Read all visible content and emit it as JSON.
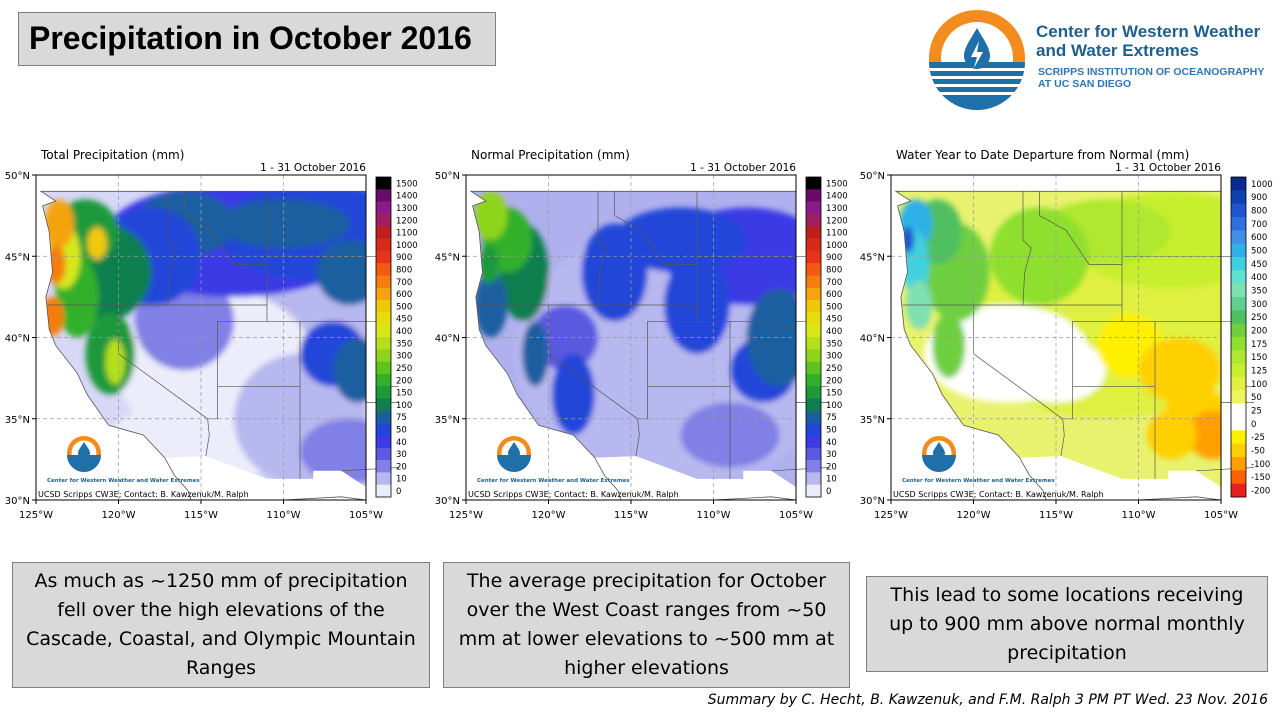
{
  "title": "Precipitation in October 2016",
  "logo": {
    "name": "Center for Western Weather and Water Extremes",
    "subtitle": "SCRIPPS INSTITUTION OF OCEANOGRAPHY AT UC SAN DIEGO",
    "colors": {
      "orange": "#f28c1f",
      "blue": "#1f6fa8",
      "dark_blue": "#1f5f8b"
    }
  },
  "map_common": {
    "date": "1 - 31 October 2016",
    "credit": "UCSD Scripps CW3E; Contact: B. Kawzenuk/M. Ralph",
    "mini_logo_text": "Center for Western Weather and Water Extremes",
    "lat_labels": [
      "50°N",
      "45°N",
      "40°N",
      "35°N",
      "30°N"
    ],
    "lon_labels": [
      "125°W",
      "120°W",
      "115°W",
      "110°W",
      "105°W"
    ]
  },
  "maps": [
    {
      "title": "Total Precipitation (mm)",
      "show_credit": true,
      "colorbar": {
        "labels": [
          "1500",
          "1400",
          "1300",
          "1200",
          "1100",
          "1000",
          "900",
          "800",
          "700",
          "600",
          "500",
          "450",
          "400",
          "350",
          "300",
          "250",
          "200",
          "150",
          "100",
          "75",
          "50",
          "40",
          "30",
          "20",
          "10",
          "0"
        ],
        "colors": [
          "#000000",
          "#6a0a6a",
          "#8b1a8b",
          "#a0205f",
          "#c01f1f",
          "#d62a1a",
          "#e8321a",
          "#f25a12",
          "#f57d0f",
          "#f5a30f",
          "#f0c80a",
          "#e8dc0a",
          "#d6e81a",
          "#b5df1a",
          "#8fd41a",
          "#5fc31f",
          "#33b02a",
          "#1f9a3a",
          "#0f7f4f",
          "#1a5fa0",
          "#2147d8",
          "#3a3ae6",
          "#5a5ae0",
          "#8080e6",
          "#b8b8f0",
          "#ececfa"
        ]
      }
    },
    {
      "title": "Normal Precipitation (mm)",
      "show_credit": true,
      "colorbar": {
        "labels": [
          "1500",
          "1400",
          "1300",
          "1200",
          "1100",
          "1000",
          "900",
          "800",
          "700",
          "600",
          "500",
          "450",
          "400",
          "350",
          "300",
          "250",
          "200",
          "150",
          "100",
          "75",
          "50",
          "40",
          "30",
          "20",
          "10",
          "0"
        ],
        "colors": [
          "#000000",
          "#6a0a6a",
          "#8b1a8b",
          "#a0205f",
          "#c01f1f",
          "#d62a1a",
          "#e8321a",
          "#f25a12",
          "#f57d0f",
          "#f5a30f",
          "#f0c80a",
          "#e8dc0a",
          "#d6e81a",
          "#b5df1a",
          "#8fd41a",
          "#5fc31f",
          "#33b02a",
          "#1f9a3a",
          "#0f7f4f",
          "#1a5fa0",
          "#2147d8",
          "#3a3ae6",
          "#5a5ae0",
          "#8080e6",
          "#b8b8f0",
          "#ececfa"
        ]
      }
    },
    {
      "title": "Water Year to Date Departure from Normal (mm)",
      "show_credit": true,
      "colorbar": {
        "labels": [
          "1000",
          "900",
          "800",
          "700",
          "600",
          "500",
          "450",
          "400",
          "350",
          "300",
          "250",
          "200",
          "175",
          "150",
          "125",
          "100",
          "50",
          "25",
          "0",
          "-25",
          "-50",
          "-100",
          "-150",
          "-200"
        ],
        "colors": [
          "#0a2a8f",
          "#0f3fb0",
          "#1f55d0",
          "#2f6fe0",
          "#3f8fe8",
          "#2fb0e8",
          "#3fd0e0",
          "#5fe0d0",
          "#7fe0b0",
          "#5fcf8f",
          "#4fbf5f",
          "#6fcf3f",
          "#8fdf2f",
          "#afe82f",
          "#c8ef2f",
          "#dff03f",
          "#eef55f",
          "#ffffff",
          "#ffffff",
          "#fff000",
          "#ffd000",
          "#ffa000",
          "#ff6000",
          "#e82020"
        ]
      }
    }
  ],
  "descriptions": [
    "As much as ~1250 mm of precipitation fell over the high elevations of the Cascade, Coastal, and Olympic Mountain Ranges",
    "The average precipitation for October over the West Coast ranges from ~50 mm at lower elevations to ~500 mm at higher elevations",
    "This lead to some locations receiving up to 900 mm above normal monthly precipitation"
  ],
  "footer": "Summary by C. Hecht, B. Kawzenuk, and F.M. Ralph 3 PM PT Wed. 23 Nov. 2016"
}
